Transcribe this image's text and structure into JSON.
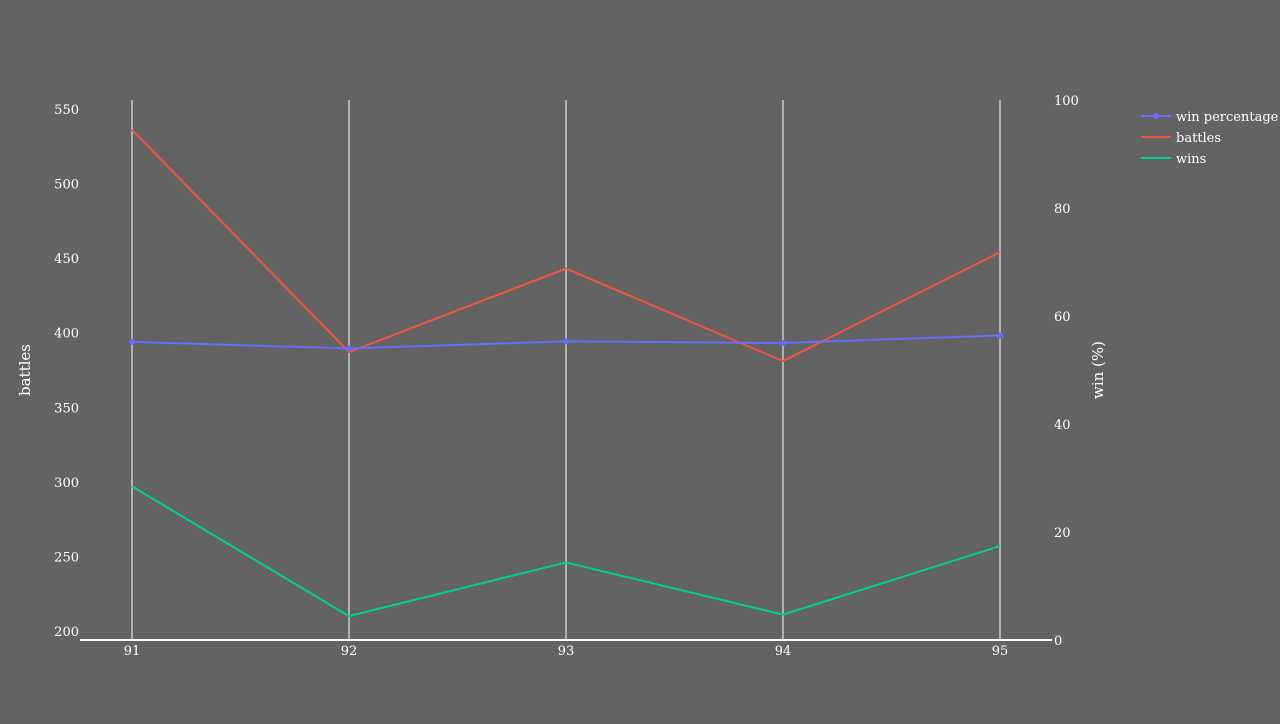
{
  "chart_data": {
    "type": "line",
    "x": [
      91,
      92,
      93,
      94,
      95
    ],
    "x_tick_labels": [
      "91",
      "92",
      "93",
      "94",
      "95"
    ],
    "y_left": {
      "label": "battles",
      "range": [
        194,
        556
      ],
      "ticks": [
        200,
        250,
        300,
        350,
        400,
        450,
        500,
        550
      ],
      "tick_labels": [
        "200",
        "250",
        "300",
        "350",
        "400",
        "450",
        "500",
        "550"
      ]
    },
    "y_right": {
      "label": "win (%)",
      "range": [
        0,
        100
      ],
      "ticks": [
        0,
        20,
        40,
        60,
        80,
        100
      ],
      "tick_labels": [
        "0",
        "20",
        "40",
        "60",
        "80",
        "100"
      ]
    },
    "series": [
      {
        "name": "win percentage",
        "axis": "right",
        "color": "#636efa",
        "markers": true,
        "values": [
          55.2,
          54.0,
          55.3,
          55.0,
          56.4
        ]
      },
      {
        "name": "battles",
        "axis": "left",
        "color": "#ef553b",
        "markers": false,
        "values": [
          536,
          387,
          443,
          381,
          454
        ]
      },
      {
        "name": "wins",
        "axis": "left",
        "color": "#00cc96",
        "markers": false,
        "values": [
          297,
          210,
          246,
          211,
          257
        ]
      }
    ],
    "grid": {
      "vertical": true,
      "horizontal": false
    },
    "legend_position": "top-right",
    "colors": {
      "background": "#636363",
      "grid": "#ffffff",
      "text": "#ffffff"
    }
  }
}
